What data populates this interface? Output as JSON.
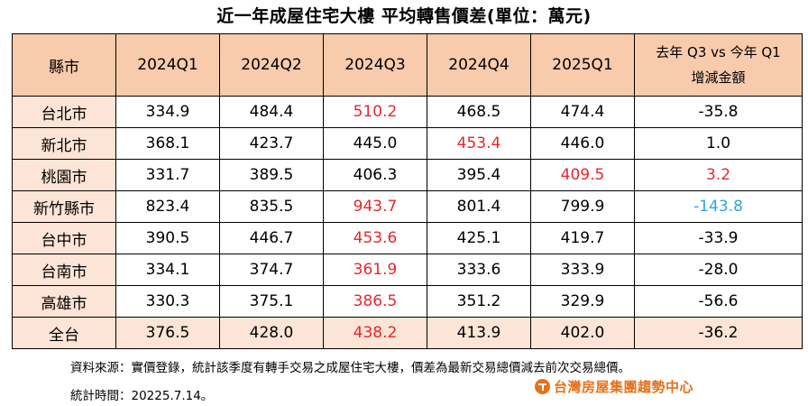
{
  "title": "近一年成屋住宅大樓  平均轉售價差(單位：萬元)",
  "table": {
    "headers": [
      "縣市",
      "2024Q1",
      "2024Q2",
      "2024Q3",
      "2024Q4",
      "2025Q1"
    ],
    "change_header_line1": "去年 Q3 vs 今年 Q1",
    "change_header_line2": "增減金額",
    "rows": [
      {
        "city": "台北市",
        "values": [
          "334.9",
          "484.4",
          "510.2",
          "468.5",
          "474.4"
        ],
        "change": "-35.8"
      },
      {
        "city": "新北市",
        "values": [
          "368.1",
          "423.7",
          "445.0",
          "453.4",
          "446.0"
        ],
        "change": "1.0"
      },
      {
        "city": "桃園市",
        "values": [
          "331.7",
          "389.5",
          "406.3",
          "395.4",
          "409.5"
        ],
        "change": "3.2"
      },
      {
        "city": "新竹縣市",
        "values": [
          "823.4",
          "835.5",
          "943.7",
          "801.4",
          "799.9"
        ],
        "change": "-143.8"
      },
      {
        "city": "台中市",
        "values": [
          "390.5",
          "446.7",
          "453.6",
          "425.1",
          "419.7"
        ],
        "change": "-33.9"
      },
      {
        "city": "台南市",
        "values": [
          "334.1",
          "374.7",
          "361.9",
          "333.6",
          "333.9"
        ],
        "change": "-28.0"
      },
      {
        "city": "高雄市",
        "values": [
          "330.3",
          "375.1",
          "386.5",
          "351.2",
          "329.9"
        ],
        "change": "-56.6"
      },
      {
        "city": "全台",
        "values": [
          "376.5",
          "428.0",
          "438.2",
          "413.9",
          "402.0"
        ],
        "change": "-36.2"
      }
    ]
  },
  "colors": {
    "header_bg": "#f8cbad",
    "city_bg": "#fce4d6",
    "highlight_red": "#e8262b",
    "highlight_blue": "#2aa9d8",
    "brand_orange": "#e8701a"
  },
  "footer": {
    "source": "資料來源：實價登錄，統計該季度有轉手交易之成屋住宅大樓，價差為最新交易總價減去前次交易總價。",
    "date": "統計時間：20225.7.14。",
    "brand": "台灣房屋集團趨勢中心",
    "brand_icon": "taiwan-realty-logo-icon"
  }
}
